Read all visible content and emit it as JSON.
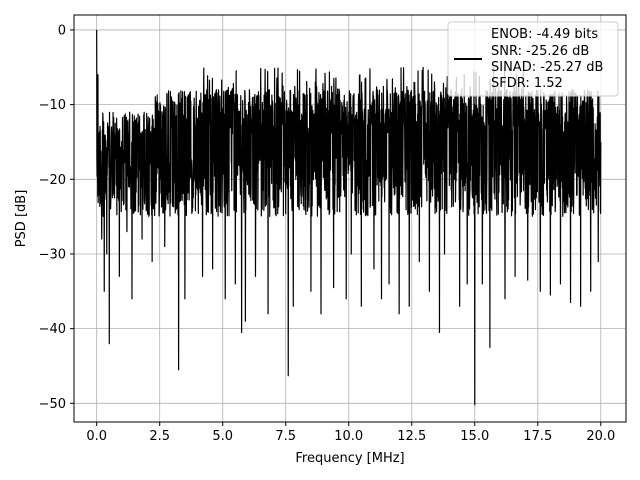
{
  "chart_data": {
    "type": "line",
    "title": "",
    "xlabel": "Frequency [MHz]",
    "ylabel": "PSD [dB]",
    "xlim": [
      -0.9,
      21.0
    ],
    "ylim": [
      -52.5,
      2.0
    ],
    "xticks": [
      0.0,
      2.5,
      5.0,
      7.5,
      10.0,
      12.5,
      15.0,
      17.5,
      20.0
    ],
    "xtick_labels": [
      "0.0",
      "2.5",
      "5.0",
      "7.5",
      "10.0",
      "12.5",
      "15.0",
      "17.5",
      "20.0"
    ],
    "yticks": [
      0,
      -10,
      -20,
      -30,
      -40,
      -50
    ],
    "ytick_labels": [
      "0",
      "−10",
      "−20",
      "−30",
      "−40",
      "−50"
    ],
    "grid": true,
    "legend_position": "top-right",
    "legend_lines": [
      "ENOB: -4.49 bits",
      "SNR: -25.26 dB",
      "SINAD: -25.27 dB",
      "SFDR: 1.52"
    ],
    "series": [
      {
        "color": "#000000",
        "x_range": [
          0.0,
          20.0
        ],
        "noise_band_db": [
          -25,
          -8
        ],
        "peak_envelope_db": -5,
        "x": [
          0.0,
          0.05,
          0.1,
          0.2,
          0.3,
          0.4,
          0.5,
          0.9,
          1.2,
          1.4,
          1.8,
          2.2,
          2.7,
          3.25,
          3.5,
          4.2,
          4.6,
          5.1,
          5.5,
          5.75,
          5.9,
          6.3,
          6.8,
          7.6,
          7.8,
          8.5,
          8.9,
          9.4,
          9.9,
          10.1,
          10.5,
          11.0,
          11.3,
          11.6,
          12.0,
          12.4,
          12.8,
          13.2,
          13.6,
          13.8,
          14.4,
          14.7,
          15.0,
          15.3,
          15.6,
          16.2,
          16.6,
          17.1,
          17.6,
          18.0,
          18.4,
          18.8,
          19.2,
          19.6,
          19.9,
          20.0
        ],
        "y": [
          0.0,
          -6.0,
          -14.0,
          -28.0,
          -35.0,
          -30.0,
          -42.0,
          -33.0,
          -27.0,
          -36.0,
          -28.0,
          -31.0,
          -29.0,
          -45.5,
          -36.0,
          -33.0,
          -32.0,
          -36.0,
          -34.0,
          -40.5,
          -39.0,
          -33.0,
          -38.0,
          -46.3,
          -37.0,
          -35.0,
          -38.0,
          -34.5,
          -36.0,
          -30.0,
          -37.0,
          -32.0,
          -36.0,
          -34.0,
          -38.0,
          -37.0,
          -31.0,
          -35.0,
          -40.5,
          -30.0,
          -37.0,
          -34.0,
          -50.2,
          -34.0,
          -42.5,
          -36.0,
          -33.0,
          -33.5,
          -35.0,
          -35.5,
          -34.0,
          -36.5,
          -37.0,
          -35.0,
          -31.0,
          -15.0
        ]
      }
    ]
  }
}
